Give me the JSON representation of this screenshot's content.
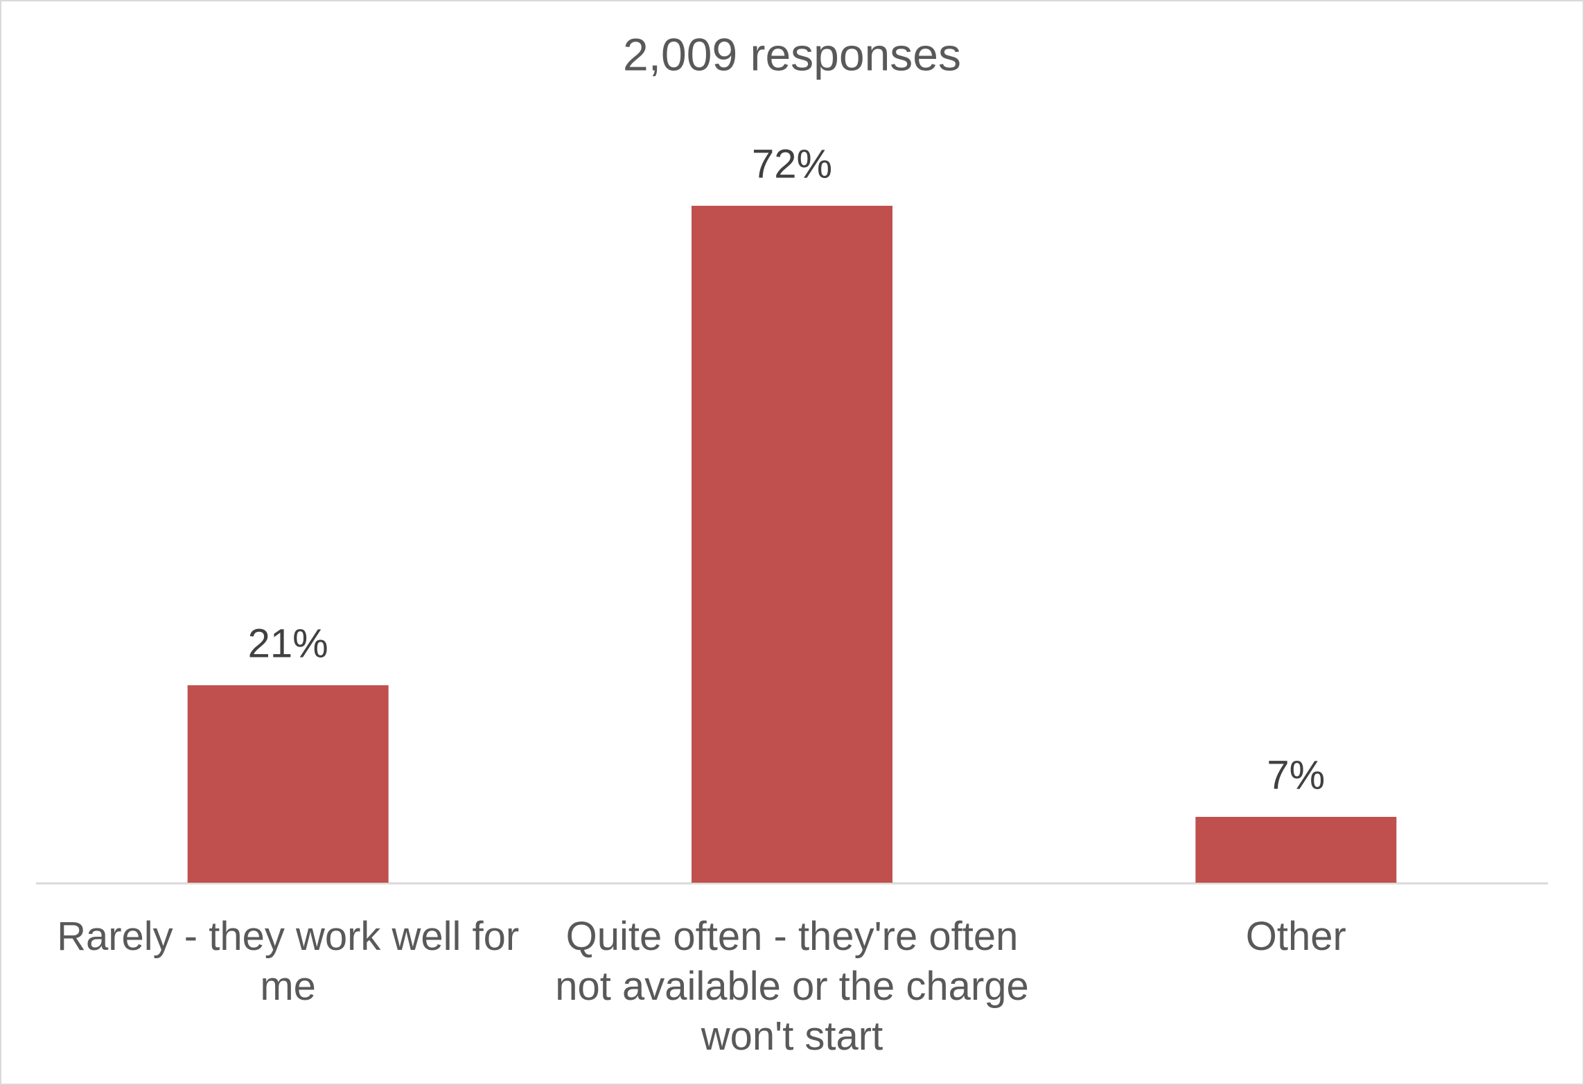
{
  "chart_data": {
    "type": "bar",
    "title": "2,009 responses",
    "categories": [
      "Rarely - they work well for me",
      "Quite often - they're often not available or the charge won't start",
      "Other"
    ],
    "values": [
      21,
      72,
      7
    ],
    "value_labels": [
      "21%",
      "72%",
      "7%"
    ],
    "color": "#c0504d"
  }
}
